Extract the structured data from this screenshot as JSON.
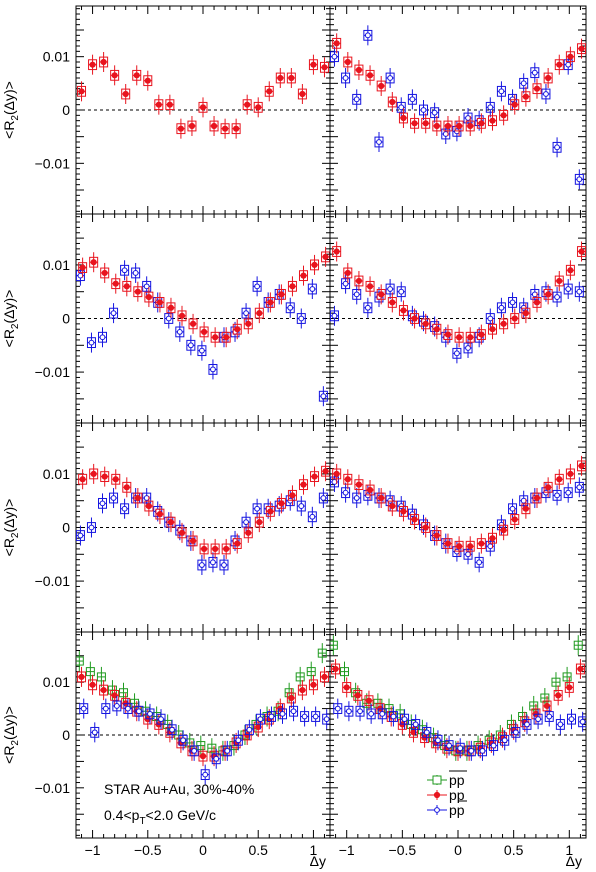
{
  "figure": {
    "ylabel_prefix": "<R",
    "ylabel_sub": "2",
    "ylabel_suffix": "(Δy)>",
    "xlabel": "Δy",
    "x_ticks": [
      -1,
      -0.5,
      0,
      0.5,
      1
    ],
    "x_tick_labels": [
      "−1",
      "−0.5",
      "0",
      "0.5",
      "1"
    ],
    "y_ticks": [
      -0.01,
      0,
      0.01
    ],
    "y_tick_labels": [
      "−0.01",
      "0",
      "0.01"
    ],
    "annotation_line1": "STAR Au+Au, 30%-40%",
    "annotation_line2_prefix": "0.4<p",
    "annotation_line2_sub": "T",
    "annotation_line2_suffix": "<2.0 GeV/c",
    "legend": [
      {
        "label": "pp",
        "overline": true,
        "color": "#1f9a1f",
        "marker": "open-square"
      },
      {
        "label": "pp",
        "overline": false,
        "color": "#e8141e",
        "marker": "filled-circle"
      },
      {
        "label": "pp",
        "overline": "second",
        "color": "#1414e0",
        "marker": "open-circle"
      }
    ],
    "colors": {
      "green": "#1f9a1f",
      "red": "#e8141e",
      "blue": "#1414e0"
    }
  },
  "chart_data": {
    "type": "scatter",
    "xlim": [
      -1.15,
      1.15
    ],
    "ylim": [
      -0.0195,
      0.0195
    ],
    "x": [
      -1.1,
      -1.0,
      -0.9,
      -0.8,
      -0.7,
      -0.6,
      -0.5,
      -0.4,
      -0.3,
      -0.2,
      -0.1,
      0.0,
      0.1,
      0.2,
      0.3,
      0.4,
      0.5,
      0.6,
      0.7,
      0.8,
      0.9,
      1.0,
      1.1
    ],
    "panels": [
      {
        "row": 0,
        "col": 0,
        "series": [
          {
            "color": "red",
            "y": [
              0.0035,
              0.0085,
              0.009,
              0.0065,
              0.003,
              0.0065,
              0.0055,
              0.001,
              0.001,
              -0.0035,
              -0.003,
              0.0005,
              -0.003,
              -0.0035,
              -0.0035,
              0.001,
              0.0005,
              0.0035,
              0.006,
              0.006,
              0.003,
              0.0085,
              0.008
            ]
          }
        ]
      },
      {
        "row": 0,
        "col": 1,
        "series": [
          {
            "color": "blue",
            "y": [
              0.01,
              0.006,
              0.002,
              0.014,
              -0.006,
              0.006,
              0.0005,
              0.002,
              0.0,
              -0.0005,
              -0.0045,
              -0.004,
              -0.0015,
              -0.002,
              0.0005,
              0.0035,
              0.002,
              0.005,
              0.007,
              0.003,
              -0.007,
              0.0085,
              -0.013
            ]
          },
          {
            "color": "red",
            "y": [
              0.0125,
              0.009,
              0.0075,
              0.0065,
              0.0045,
              0.0015,
              -0.0015,
              -0.0025,
              -0.0025,
              -0.003,
              -0.003,
              -0.003,
              -0.003,
              -0.0025,
              -0.002,
              -0.001,
              0.001,
              0.0025,
              0.004,
              0.006,
              0.0085,
              0.01,
              0.0115
            ]
          }
        ]
      },
      {
        "row": 1,
        "col": 0,
        "series": [
          {
            "color": "blue",
            "y": [
              0.008,
              -0.0045,
              -0.0035,
              0.001,
              0.009,
              0.0085,
              0.006,
              0.003,
              0.0,
              -0.0025,
              -0.005,
              -0.006,
              -0.0095,
              -0.0035,
              -0.0025,
              0.001,
              0.006,
              0.003,
              0.0045,
              0.002,
              0.0,
              0.0055,
              -0.0145
            ]
          },
          {
            "color": "red",
            "y": [
              0.0095,
              0.0105,
              0.0085,
              0.0065,
              0.006,
              0.005,
              0.004,
              0.003,
              0.002,
              0.0005,
              -0.001,
              -0.0025,
              -0.0035,
              -0.0035,
              -0.002,
              -0.001,
              0.001,
              0.003,
              0.0045,
              0.006,
              0.008,
              0.01,
              0.0115
            ]
          }
        ]
      },
      {
        "row": 1,
        "col": 1,
        "series": [
          {
            "color": "blue",
            "y": [
              0.0005,
              0.0065,
              0.0045,
              0.002,
              0.004,
              0.0055,
              0.005,
              0.0005,
              -0.0005,
              -0.0015,
              -0.0035,
              -0.0065,
              -0.0055,
              -0.0035,
              0.0,
              0.002,
              0.003,
              0.002,
              0.0045,
              0.005,
              0.004,
              0.0055,
              0.005
            ]
          },
          {
            "color": "red",
            "y": [
              0.0125,
              0.0085,
              0.007,
              0.006,
              0.0045,
              0.003,
              0.0015,
              0.0,
              -0.001,
              -0.002,
              -0.003,
              -0.0035,
              -0.0035,
              -0.003,
              -0.002,
              -0.001,
              0.0,
              0.001,
              0.003,
              0.0045,
              0.007,
              0.009,
              0.0125
            ]
          }
        ]
      },
      {
        "row": 2,
        "col": 0,
        "series": [
          {
            "color": "blue",
            "y": [
              -0.0015,
              0.0,
              0.0045,
              0.0055,
              0.0035,
              0.0055,
              0.0055,
              0.003,
              0.001,
              -0.0005,
              -0.0025,
              -0.007,
              -0.0065,
              -0.007,
              -0.0025,
              0.001,
              0.0035,
              0.0035,
              0.004,
              0.005,
              0.004,
              0.002,
              0.0055
            ]
          },
          {
            "color": "red",
            "y": [
              0.009,
              0.01,
              0.0095,
              0.009,
              0.0075,
              0.0055,
              0.004,
              0.0025,
              0.001,
              -0.001,
              -0.0025,
              -0.004,
              -0.004,
              -0.004,
              -0.003,
              -0.001,
              0.001,
              0.003,
              0.0045,
              0.006,
              0.008,
              0.0095,
              0.0105
            ]
          }
        ]
      },
      {
        "row": 2,
        "col": 1,
        "series": [
          {
            "color": "blue",
            "y": [
              0.0085,
              0.0065,
              0.0055,
              0.006,
              0.0055,
              0.005,
              0.004,
              0.0025,
              0.0005,
              -0.0015,
              -0.003,
              -0.0045,
              -0.005,
              -0.0065,
              -0.0035,
              0.0005,
              0.0035,
              0.005,
              0.0055,
              0.0065,
              0.006,
              0.0065,
              0.0075
            ]
          },
          {
            "color": "red",
            "y": [
              0.01,
              0.009,
              0.008,
              0.007,
              0.0055,
              0.004,
              0.003,
              0.0015,
              0.0,
              -0.0015,
              -0.003,
              -0.0035,
              -0.0035,
              -0.003,
              -0.002,
              -0.0005,
              0.0015,
              0.0035,
              0.0055,
              0.0075,
              0.009,
              0.01,
              0.0115
            ]
          }
        ]
      },
      {
        "row": 3,
        "col": 0,
        "series": [
          {
            "color": "green",
            "y": [
              0.014,
              0.012,
              0.011,
              0.0085,
              0.008,
              0.006,
              0.0045,
              0.0035,
              0.002,
              0.0,
              -0.0015,
              -0.002,
              -0.0025,
              -0.003,
              -0.002,
              0.0,
              0.002,
              0.0035,
              0.0045,
              0.008,
              0.011,
              0.012,
              0.0155
            ]
          },
          {
            "color": "red",
            "y": [
              0.011,
              0.0095,
              0.0085,
              0.0075,
              0.006,
              0.0045,
              0.003,
              0.002,
              0.0005,
              -0.0015,
              -0.003,
              -0.004,
              -0.004,
              -0.003,
              -0.0015,
              0.0,
              0.0015,
              0.003,
              0.005,
              0.007,
              0.0085,
              0.0095,
              0.011
            ]
          },
          {
            "color": "blue",
            "y": [
              0.005,
              0.0005,
              0.005,
              0.0055,
              0.005,
              0.0045,
              0.004,
              0.003,
              0.001,
              -0.001,
              -0.003,
              -0.0075,
              -0.0045,
              -0.003,
              -0.001,
              0.001,
              0.003,
              0.0035,
              0.004,
              0.0045,
              0.0035,
              0.0035,
              0.003
            ]
          }
        ]
      },
      {
        "row": 3,
        "col": 1,
        "series": [
          {
            "color": "green",
            "y": [
              0.017,
              0.012,
              0.008,
              0.006,
              0.006,
              0.005,
              0.004,
              0.002,
              0.001,
              -0.0005,
              -0.002,
              -0.003,
              -0.003,
              -0.002,
              -0.001,
              0.0,
              0.002,
              0.0035,
              0.0055,
              0.007,
              0.01,
              0.011,
              0.017
            ]
          },
          {
            "color": "red",
            "y": [
              0.0125,
              0.009,
              0.0075,
              0.0065,
              0.005,
              0.0035,
              0.002,
              0.0005,
              -0.0005,
              -0.0015,
              -0.0025,
              -0.003,
              -0.003,
              -0.0025,
              -0.0015,
              -0.0005,
              0.001,
              0.0025,
              0.004,
              0.0055,
              0.0075,
              0.009,
              0.0125
            ]
          },
          {
            "color": "blue",
            "y": [
              0.005,
              0.0045,
              0.0045,
              0.004,
              0.004,
              0.0035,
              0.003,
              0.002,
              0.0005,
              -0.001,
              -0.002,
              -0.0025,
              -0.003,
              -0.003,
              -0.002,
              -0.001,
              0.0005,
              0.002,
              0.003,
              0.0035,
              0.002,
              0.003,
              0.0025
            ]
          }
        ]
      }
    ]
  }
}
